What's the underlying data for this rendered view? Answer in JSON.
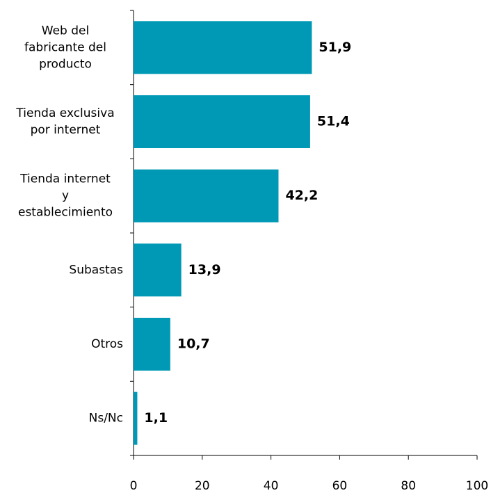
{
  "chart_data": {
    "type": "bar",
    "orientation": "horizontal",
    "categories": [
      "Web del\nfabricante del\nproducto",
      "Tienda exclusiva\npor internet",
      "Tienda internet\ny\nestablecimiento",
      "Subastas",
      "Otros",
      "Ns/Nc"
    ],
    "values": [
      51.9,
      51.4,
      42.2,
      13.9,
      10.7,
      1.1
    ],
    "value_labels": [
      "51,9",
      "51,4",
      "42,2",
      "13,9",
      "10,7",
      "1,1"
    ],
    "color": "#0099b5",
    "xlim": [
      0,
      100
    ],
    "xticks": [
      0,
      20,
      40,
      60,
      80,
      100
    ],
    "grid": false
  }
}
